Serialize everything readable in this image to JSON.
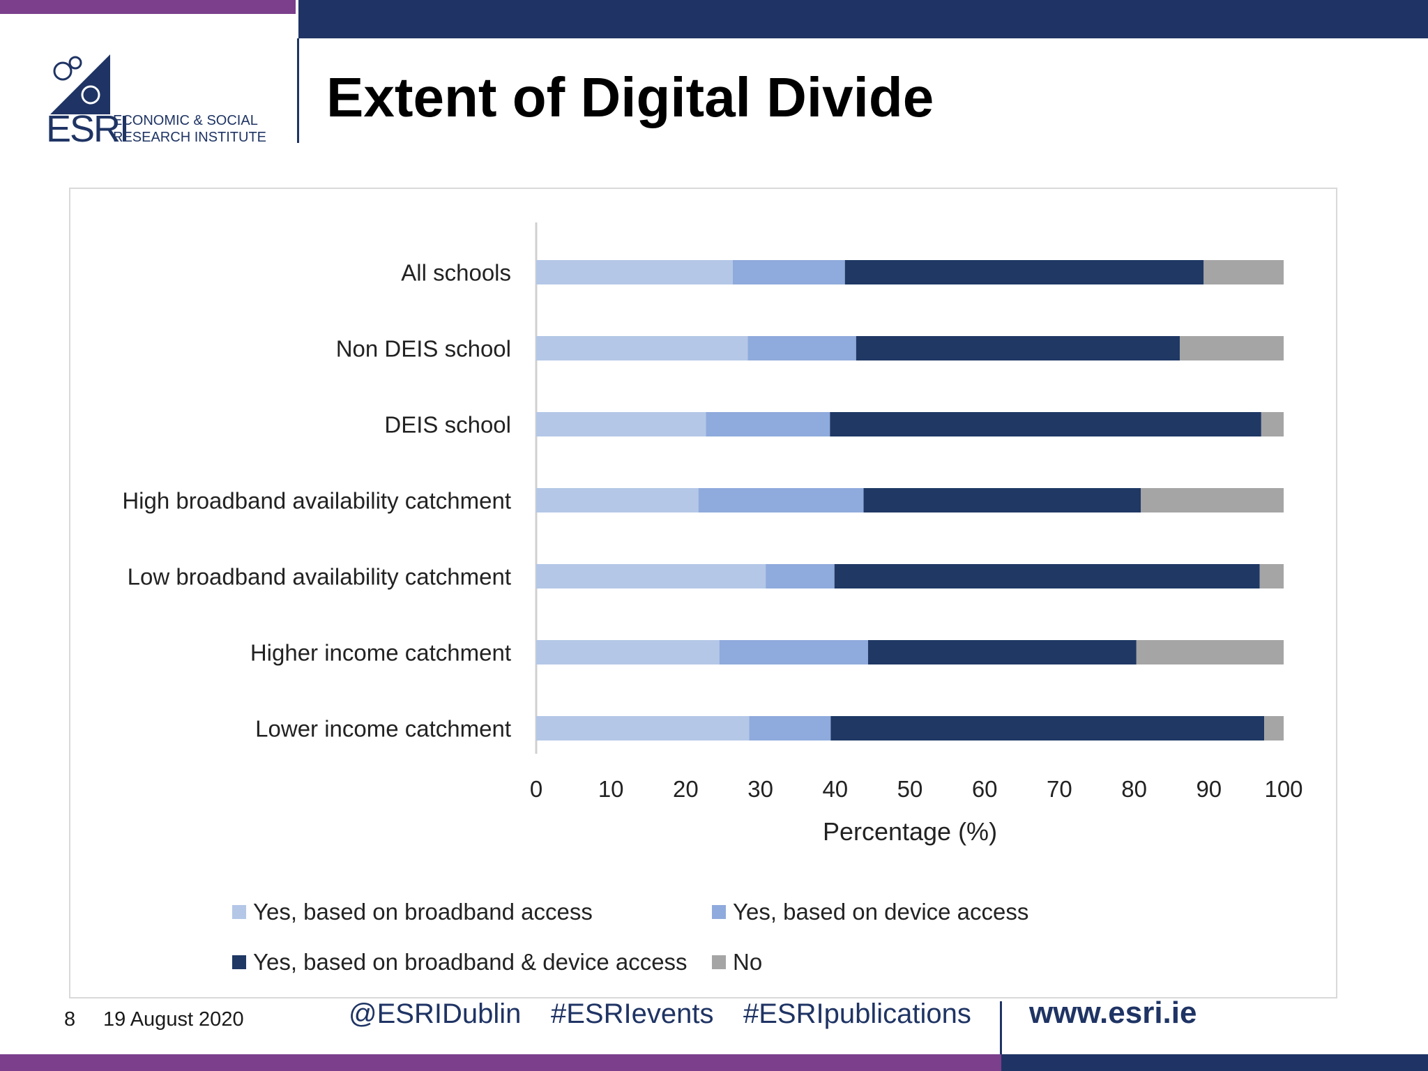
{
  "slide": {
    "title": "Extent of Digital Divide",
    "logo": {
      "abbr": "ESRI",
      "line1": "ECONOMIC & SOCIAL",
      "line2": "RESEARCH INSTITUTE"
    }
  },
  "footer": {
    "page_number": "8",
    "date": "19 August 2020",
    "twitter": "@ESRIDublin",
    "hashtag_events": "#ESRIevents",
    "hashtag_publications": "#ESRIpublications",
    "website": "www.esri.ie"
  },
  "colors": {
    "purple": "#7b3f8c",
    "navy": "#1f3464"
  },
  "chart_data": {
    "type": "bar",
    "orientation": "horizontal",
    "stacked": true,
    "title": "",
    "xlabel": "Percentage (%)",
    "ylabel": "",
    "xlim": [
      0,
      100
    ],
    "xticks": [
      0,
      10,
      20,
      30,
      40,
      50,
      60,
      70,
      80,
      90,
      100
    ],
    "categories": [
      "All schools",
      "Non DEIS school",
      "DEIS school",
      "High broadband availability catchment",
      "Low broadband availability catchment",
      "Higher income catchment",
      "Lower income catchment"
    ],
    "series": [
      {
        "name": "Yes, based on broadband access",
        "color": "#b4c7e7",
        "values": [
          26.3,
          28.3,
          22.7,
          21.7,
          30.7,
          24.5,
          28.5
        ]
      },
      {
        "name": "Yes, based on device access",
        "color": "#8faadc",
        "values": [
          15.0,
          14.5,
          16.6,
          22.1,
          9.2,
          19.9,
          10.9
        ]
      },
      {
        "name": "Yes, based on broadband & device access",
        "color": "#1f3864",
        "values": [
          48.0,
          43.3,
          57.7,
          37.1,
          56.9,
          35.9,
          58.0
        ]
      },
      {
        "name": "No",
        "color": "#a5a5a5",
        "values": [
          10.7,
          13.9,
          3.0,
          19.1,
          3.2,
          19.7,
          2.6
        ]
      }
    ],
    "legend_position": "bottom",
    "grid": false
  }
}
